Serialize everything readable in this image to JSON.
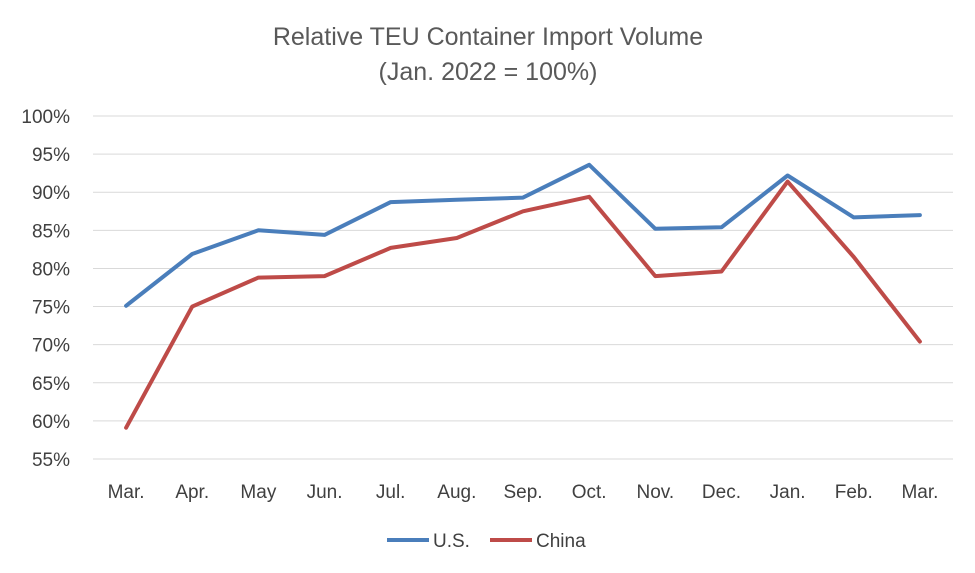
{
  "chart_data": {
    "type": "line",
    "title": "Relative TEU Container Import  Volume",
    "subtitle": "(Jan. 2022 = 100%)",
    "categories": [
      "Mar.",
      "Apr.",
      "May",
      "Jun.",
      "Jul.",
      "Aug.",
      "Sep.",
      "Oct.",
      "Nov.",
      "Dec.",
      "Jan.",
      "Feb.",
      "Mar."
    ],
    "series": [
      {
        "name": "U.S.",
        "color": "#4a7ebb",
        "values": [
          75.1,
          81.9,
          85.0,
          84.4,
          88.7,
          89.0,
          89.3,
          93.6,
          85.2,
          85.4,
          92.2,
          86.7,
          87.0
        ]
      },
      {
        "name": "China",
        "color": "#be4b48",
        "values": [
          59.1,
          75.0,
          78.8,
          79.0,
          82.7,
          84.0,
          87.5,
          89.4,
          79.0,
          79.6,
          91.4,
          81.5,
          70.4
        ]
      }
    ],
    "ylim": [
      55,
      100
    ],
    "y_ticks": [
      "55%",
      "60%",
      "65%",
      "70%",
      "75%",
      "80%",
      "85%",
      "90%",
      "95%",
      "100%"
    ],
    "y_tick_values": [
      55,
      60,
      65,
      70,
      75,
      80,
      85,
      90,
      95,
      100
    ],
    "grid": true,
    "legend_position": "bottom"
  }
}
